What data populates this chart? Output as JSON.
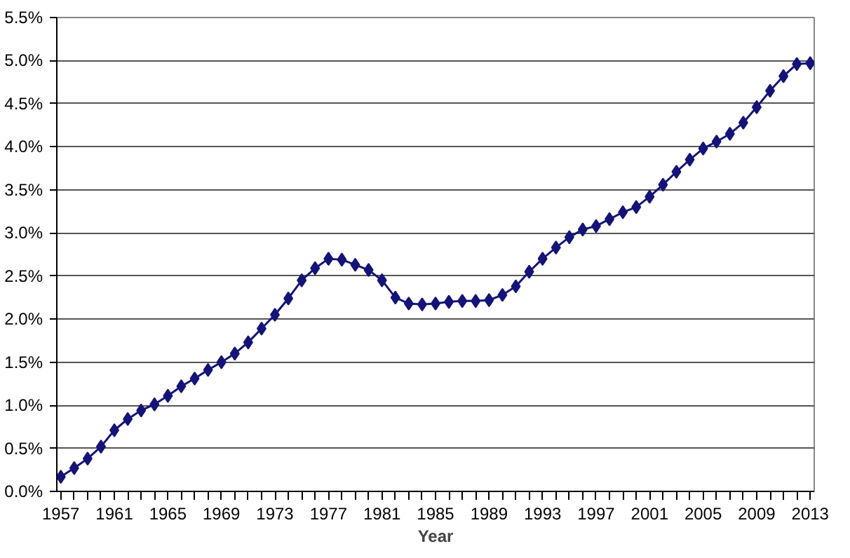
{
  "chart_data": {
    "type": "line",
    "xlabel": "Year",
    "x": [
      1957,
      1958,
      1959,
      1960,
      1961,
      1962,
      1963,
      1964,
      1965,
      1966,
      1967,
      1968,
      1969,
      1970,
      1971,
      1972,
      1973,
      1974,
      1975,
      1976,
      1977,
      1978,
      1979,
      1980,
      1981,
      1982,
      1983,
      1984,
      1985,
      1986,
      1987,
      1988,
      1989,
      1990,
      1991,
      1992,
      1993,
      1994,
      1995,
      1996,
      1997,
      1998,
      1999,
      2000,
      2001,
      2002,
      2003,
      2004,
      2005,
      2006,
      2007,
      2008,
      2009,
      2010,
      2011,
      2012,
      2013
    ],
    "series": [
      {
        "color": "#141478",
        "values": [
          0.17,
          0.27,
          0.38,
          0.52,
          0.71,
          0.84,
          0.94,
          1.01,
          1.11,
          1.22,
          1.31,
          1.41,
          1.5,
          1.6,
          1.73,
          1.89,
          2.05,
          2.24,
          2.45,
          2.59,
          2.7,
          2.69,
          2.63,
          2.57,
          2.45,
          2.25,
          2.18,
          2.17,
          2.18,
          2.2,
          2.21,
          2.21,
          2.22,
          2.28,
          2.38,
          2.55,
          2.7,
          2.83,
          2.95,
          3.04,
          3.08,
          3.16,
          3.24,
          3.3,
          3.42,
          3.56,
          3.71,
          3.85,
          3.98,
          4.06,
          4.15,
          4.28,
          4.46,
          4.65,
          4.82,
          4.96,
          4.97
        ]
      }
    ],
    "xlim": [
      1956.7,
      2013.3
    ],
    "xticks": [
      1957,
      1961,
      1965,
      1969,
      1973,
      1977,
      1981,
      1985,
      1989,
      1993,
      1997,
      2001,
      2005,
      2009,
      2013
    ],
    "ylim": [
      0,
      5.5
    ],
    "yticks": [
      {
        "value": 0,
        "label": "0.0%"
      },
      {
        "value": 0.5,
        "label": "0.5%"
      },
      {
        "value": 1,
        "label": "1.0%"
      },
      {
        "value": 1.5,
        "label": "1.5%"
      },
      {
        "value": 2,
        "label": "2.0%"
      },
      {
        "value": 2.5,
        "label": "2.5%"
      },
      {
        "value": 3,
        "label": "3.0%"
      },
      {
        "value": 3.5,
        "label": "3.5%"
      },
      {
        "value": 4,
        "label": "4.0%"
      },
      {
        "value": 4.5,
        "label": "4.5%"
      },
      {
        "value": 5,
        "label": "5.0%"
      },
      {
        "value": 5.5,
        "label": "5.5%"
      }
    ],
    "grid": "y",
    "marker": "diamond",
    "line_style": "solid"
  }
}
